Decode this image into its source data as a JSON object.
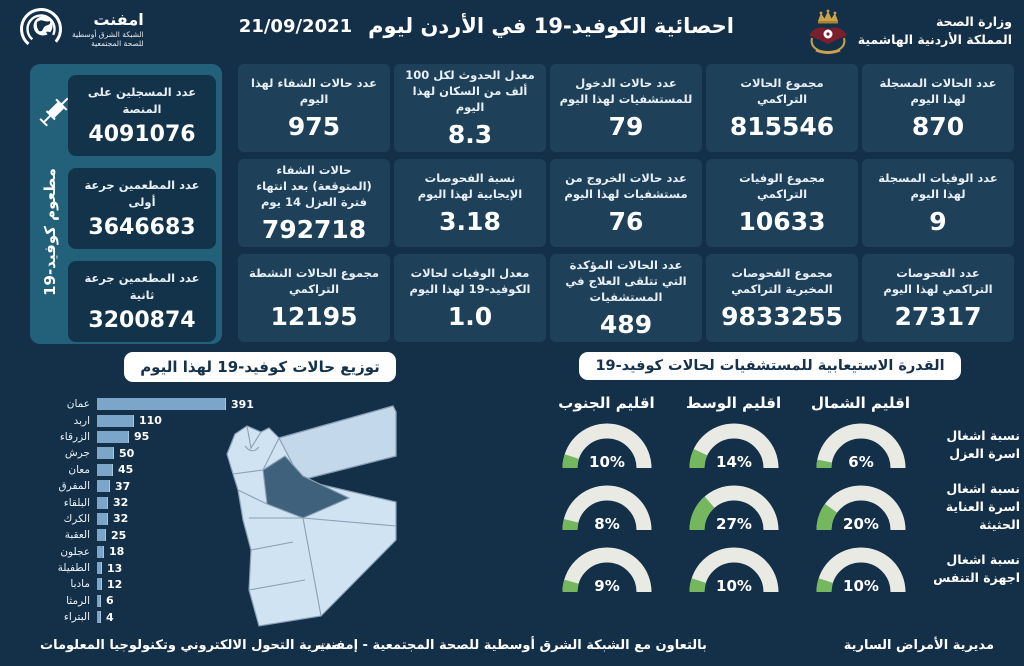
{
  "header": {
    "ministry": {
      "line1": "وزارة الصحة",
      "line2": "المملكة الأردنية الهاشمية"
    },
    "title": "احصائية الكوفيد-19 في الأردن ليوم",
    "date": "21/09/2021",
    "logo": {
      "name": "امفنت",
      "line1": "الشبكة الشرق أوسطية",
      "line2": "للصحة المجتمعية"
    }
  },
  "stats_grid": {
    "cards": [
      {
        "label": "عدد الحالات المسجلة لهذا اليوم",
        "value": "870"
      },
      {
        "label": "مجموع الحالات التراكمي",
        "value": "815546"
      },
      {
        "label": "عدد حالات الدخول للمستشفيات لهذا اليوم",
        "value": "79"
      },
      {
        "label": "معدل الحدوث لكل 100 ألف من السكان لهذا اليوم",
        "value": "8.3"
      },
      {
        "label": "عدد حالات الشفاء لهذا اليوم",
        "value": "975"
      },
      {
        "label": "عدد الوفيات المسجلة لهذا اليوم",
        "value": "9"
      },
      {
        "label": "مجموع الوفيات التراكمي",
        "value": "10633"
      },
      {
        "label": "عدد حالات الخروج من مستشفيات لهذا اليوم",
        "value": "76"
      },
      {
        "label": "نسبة الفحوصات الإيجابية لهذا اليوم",
        "value": "3.18"
      },
      {
        "label": "حالات الشفاء (المتوقعة) بعد انتهاء فترة العزل 14 يوم",
        "value": "792718"
      },
      {
        "label": "عدد الفحوصات التراكمي لهذا اليوم",
        "value": "27317"
      },
      {
        "label": "مجموع الفحوصات المخبرية التراكمي",
        "value": "9833255"
      },
      {
        "label": "عدد الحالات المؤكدة التي تتلقى العلاج في المستشفيات",
        "value": "489"
      },
      {
        "label": "معدل الوفيات لحالات الكوفيد-19 لهذا اليوم",
        "value": "1.0"
      },
      {
        "label": "مجموع الحالات النشطة التراكمي",
        "value": "12195"
      }
    ]
  },
  "vaccine_panel": {
    "vertical_label": "مطعوم كوفيد-19",
    "cards": [
      {
        "label": "عدد المسجلين على المنصة",
        "value": "4091076"
      },
      {
        "label": "عدد المطعمين جرعة أولى",
        "value": "3646683"
      },
      {
        "label": "عدد المطعمين جرعة ثانية",
        "value": "3200874"
      }
    ]
  },
  "chart_data": [
    {
      "type": "bar",
      "orientation": "horizontal",
      "title": "توزيع حالات كوفيد-19 لهذا اليوم",
      "categories": [
        "عمان",
        "اربد",
        "الزرقاء",
        "جرش",
        "معان",
        "المفرق",
        "البلقاء",
        "الكرك",
        "العقبة",
        "عجلون",
        "الطفيلة",
        "مادبا",
        "الرمثا",
        "البتراء"
      ],
      "values": [
        391,
        110,
        95,
        50,
        45,
        37,
        32,
        32,
        25,
        18,
        13,
        12,
        6,
        4
      ],
      "xlim": [
        0,
        400
      ],
      "bar_color": "#7ba6c9",
      "value_labels": true
    },
    {
      "type": "gauge",
      "title": "القدرة الاستيعابية للمستشفيات لحالات كوفيد-19",
      "unit": "%",
      "columns": [
        "اقليم الشمال",
        "اقليم الوسط",
        "اقليم الجنوب"
      ],
      "rows": [
        {
          "label": "نسبة اشغال اسرة العزل",
          "values_pct": [
            6,
            14,
            10
          ]
        },
        {
          "label": "نسبة اشغال اسرة العناية الحثيثة",
          "values_pct": [
            20,
            27,
            8
          ]
        },
        {
          "label": "نسبة اشغال اجهزة التنفس",
          "values_pct": [
            10,
            10,
            9
          ]
        }
      ],
      "range": [
        0,
        100
      ],
      "track_color": "#e9eae4",
      "fill_color": "#74b75f"
    }
  ],
  "footer": {
    "right": "مديرية الأمراض السارية",
    "center": "بالتعاون مع الشبكة الشرق أوسطية للصحة المجتمعية - إمفنت",
    "left": "مديرية التحول الالكتروني وتكنولوجيا المعلومات"
  },
  "colors": {
    "background": "#143049",
    "card": "#1e4159",
    "sidebar": "#23607a",
    "sidebar_card": "#12334a",
    "bar": "#7ba6c9",
    "gauge_green": "#74b75f",
    "gauge_track": "#e9eae4",
    "map_light": "#cfe3f2",
    "map_highlight": "#40617c",
    "gold": "#c9a24b",
    "crest_red": "#7d1f2d"
  }
}
